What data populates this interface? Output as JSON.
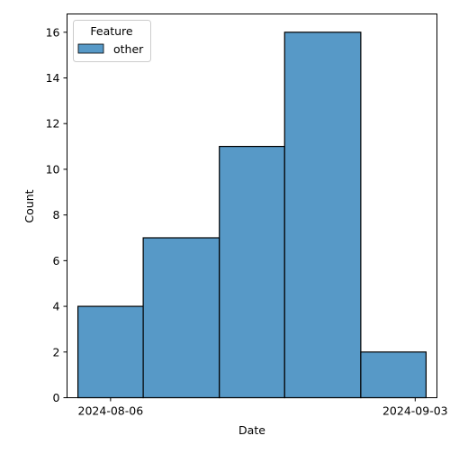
{
  "chart_data": {
    "type": "bar",
    "subtype": "histogram",
    "xlabel": "Date",
    "ylabel": "Count",
    "x_ticks": [
      "2024-08-06",
      "2024-09-03"
    ],
    "y_ticks": [
      0,
      2,
      4,
      6,
      8,
      10,
      12,
      14,
      16
    ],
    "ylim": [
      0,
      16.8
    ],
    "xlim": [
      "2024-08-02",
      "2024-09-05"
    ],
    "bins": [
      {
        "start": "2024-08-03",
        "end": "2024-08-09",
        "count": 4
      },
      {
        "start": "2024-08-09",
        "end": "2024-08-16",
        "count": 7
      },
      {
        "start": "2024-08-16",
        "end": "2024-08-22",
        "count": 11
      },
      {
        "start": "2024-08-22",
        "end": "2024-08-29",
        "count": 16
      },
      {
        "start": "2024-08-29",
        "end": "2024-09-04",
        "count": 2
      }
    ],
    "legend": {
      "title": "Feature",
      "entries": [
        {
          "label": "other",
          "color": "#5799c7"
        }
      ],
      "placement": "top-left"
    },
    "grid": false,
    "bar_color": "#5799c7",
    "edge_color": "#000000"
  }
}
